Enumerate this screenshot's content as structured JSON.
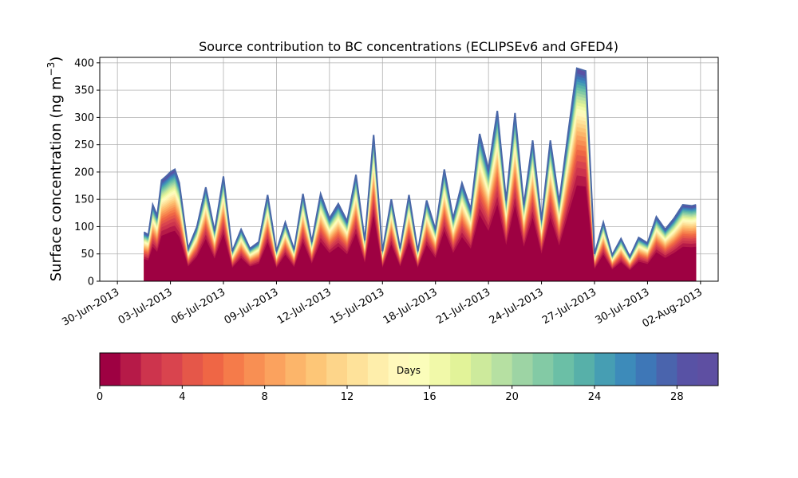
{
  "chart_data": {
    "type": "area",
    "title": "Source contribution to BC concentrations (ECLIPSEv6 and GFED4)",
    "ylabel": "Surface concentration (ng m",
    "ylabel_sup": "−3",
    "ylabel_tail": ")",
    "xlabel": "",
    "ylim": [
      0,
      410
    ],
    "xlim": [
      "2013-06-29",
      "2013-08-03"
    ],
    "y_ticks": [
      0,
      50,
      100,
      150,
      200,
      250,
      300,
      350,
      400
    ],
    "x_ticks": [
      {
        "date": "2013-06-30",
        "label": "30-Jun-2013"
      },
      {
        "date": "2013-07-03",
        "label": "03-Jul-2013"
      },
      {
        "date": "2013-07-06",
        "label": "06-Jul-2013"
      },
      {
        "date": "2013-07-09",
        "label": "09-Jul-2013"
      },
      {
        "date": "2013-07-12",
        "label": "12-Jul-2013"
      },
      {
        "date": "2013-07-15",
        "label": "15-Jul-2013"
      },
      {
        "date": "2013-07-18",
        "label": "18-Jul-2013"
      },
      {
        "date": "2013-07-21",
        "label": "21-Jul-2013"
      },
      {
        "date": "2013-07-24",
        "label": "24-Jul-2013"
      },
      {
        "date": "2013-07-27",
        "label": "27-Jul-2013"
      },
      {
        "date": "2013-07-30",
        "label": "30-Jul-2013"
      },
      {
        "date": "2013-08-02",
        "label": "02-Aug-2013"
      }
    ],
    "grid": true,
    "total_series": {
      "x": [
        "2013-07-01 12:00",
        "2013-07-01 18:00",
        "2013-07-02 00:00",
        "2013-07-02 06:00",
        "2013-07-02 12:00",
        "2013-07-02 18:00",
        "2013-07-03 00:00",
        "2013-07-03 06:00",
        "2013-07-03 12:00",
        "2013-07-04 00:00",
        "2013-07-04 12:00",
        "2013-07-05 00:00",
        "2013-07-05 12:00",
        "2013-07-06 00:00",
        "2013-07-06 12:00",
        "2013-07-07 00:00",
        "2013-07-07 12:00",
        "2013-07-08 00:00",
        "2013-07-08 12:00",
        "2013-07-09 00:00",
        "2013-07-09 12:00",
        "2013-07-10 00:00",
        "2013-07-10 12:00",
        "2013-07-11 00:00",
        "2013-07-11 12:00",
        "2013-07-12 00:00",
        "2013-07-12 12:00",
        "2013-07-13 00:00",
        "2013-07-13 12:00",
        "2013-07-14 00:00",
        "2013-07-14 12:00",
        "2013-07-15 00:00",
        "2013-07-15 12:00",
        "2013-07-16 00:00",
        "2013-07-16 12:00",
        "2013-07-17 00:00",
        "2013-07-17 12:00",
        "2013-07-18 00:00",
        "2013-07-18 12:00",
        "2013-07-19 00:00",
        "2013-07-19 12:00",
        "2013-07-20 00:00",
        "2013-07-20 12:00",
        "2013-07-21 00:00",
        "2013-07-21 12:00",
        "2013-07-22 00:00",
        "2013-07-22 12:00",
        "2013-07-23 00:00",
        "2013-07-23 12:00",
        "2013-07-24 00:00",
        "2013-07-24 12:00",
        "2013-07-25 00:00",
        "2013-07-25 12:00",
        "2013-07-26 00:00",
        "2013-07-26 12:00",
        "2013-07-27 00:00",
        "2013-07-27 12:00",
        "2013-07-28 00:00",
        "2013-07-28 12:00",
        "2013-07-29 00:00",
        "2013-07-29 12:00",
        "2013-07-30 00:00",
        "2013-07-30 12:00",
        "2013-07-31 00:00",
        "2013-07-31 12:00",
        "2013-08-01 00:00",
        "2013-08-01 12:00",
        "2013-08-01 18:00"
      ],
      "y": [
        90,
        85,
        140,
        120,
        185,
        192,
        200,
        205,
        180,
        60,
        100,
        172,
        92,
        192,
        55,
        95,
        60,
        72,
        158,
        55,
        108,
        58,
        160,
        72,
        160,
        115,
        142,
        110,
        195,
        75,
        268,
        55,
        150,
        60,
        158,
        55,
        148,
        95,
        205,
        115,
        180,
        132,
        270,
        205,
        312,
        148,
        308,
        140,
        258,
        112,
        258,
        145,
        270,
        390,
        385,
        50,
        108,
        48,
        78,
        45,
        80,
        70,
        118,
        95,
        115,
        140,
        138,
        140
      ],
      "line_color": "#4a67a8"
    },
    "colorbar": {
      "label": "Days",
      "min": 0,
      "max": 30,
      "bins": 30,
      "ticks": [
        0,
        4,
        8,
        12,
        16,
        20,
        24,
        28
      ],
      "colors": [
        "#9e0142",
        "#b61a48",
        "#cd344d",
        "#d9444e",
        "#e55749",
        "#ef6645",
        "#f57b4a",
        "#f88f53",
        "#fba25e",
        "#fcb56a",
        "#fdc677",
        "#fdd58a",
        "#fee29a",
        "#feeeab",
        "#fff8bc",
        "#fbfdba",
        "#f1f9a9",
        "#e2f399",
        "#cdea9c",
        "#b6e0a2",
        "#9dd4a4",
        "#83caa5",
        "#6bbfa6",
        "#57b0a9",
        "#469eb3",
        "#3d8bba",
        "#3e77b7",
        "#4a64ad",
        "#5852a5",
        "#5e4fa2"
      ]
    }
  }
}
